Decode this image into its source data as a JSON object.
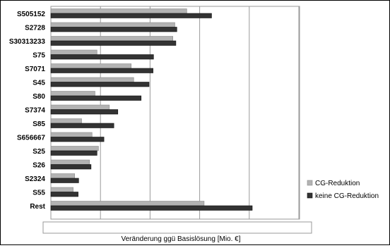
{
  "chart_data": {
    "type": "bar",
    "orientation": "horizontal",
    "categories": [
      "S505152",
      "S2728",
      "S30313233",
      "S75",
      "S7071",
      "S45",
      "S80",
      "S7374",
      "S85",
      "S656667",
      "S25",
      "S26",
      "S2324",
      "S55",
      "Rest"
    ],
    "series": [
      {
        "name": "CG-Reduktion",
        "color": "#b3b3b3",
        "values": [
          2.74,
          2.5,
          2.46,
          0.93,
          1.62,
          1.67,
          0.89,
          1.18,
          0.62,
          0.83,
          0.96,
          0.78,
          0.48,
          0.45,
          3.09
        ]
      },
      {
        "name": "keine CG-Reduktion",
        "color": "#333333",
        "values": [
          3.24,
          2.54,
          2.52,
          2.07,
          2.06,
          1.98,
          1.82,
          1.35,
          1.27,
          1.07,
          0.93,
          0.81,
          0.56,
          0.55,
          4.06
        ]
      }
    ],
    "xlabel": "Veränderung ggü Basislösung [Mio. €]",
    "xlim": [
      0,
      5
    ],
    "grid": true,
    "legend": "right"
  }
}
